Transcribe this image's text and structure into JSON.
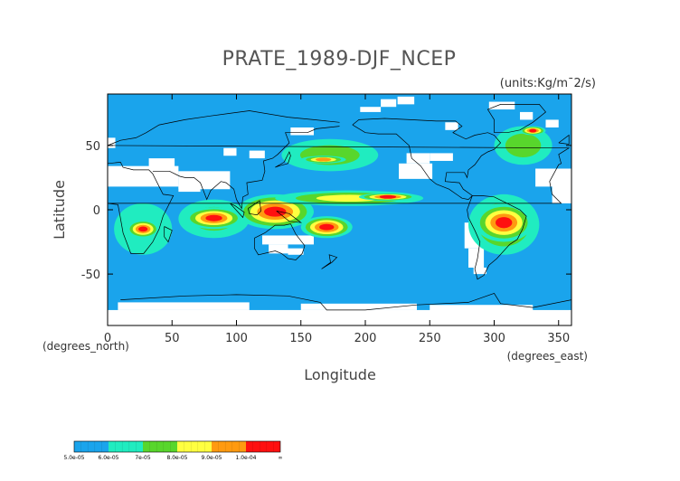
{
  "chart_data": {
    "type": "heatmap",
    "title": "PRATE_1989-DJF_NCEP",
    "units": "(units:Kg/m¯2/s)",
    "xlabel": "Longitude",
    "ylabel": "Latitude",
    "x_unit_label": "(degrees_east)",
    "y_unit_label": "(degrees_north)",
    "xlim": [
      0,
      360
    ],
    "ylim": [
      -90,
      90
    ],
    "x_ticks": [
      0,
      50,
      100,
      150,
      200,
      250,
      300,
      350
    ],
    "y_ticks": [
      50,
      0,
      -50
    ],
    "x_tick_labels": [
      "0",
      "50",
      "100",
      "150",
      "200",
      "250",
      "300",
      "350"
    ],
    "y_tick_labels": [
      "50",
      "0",
      "-50"
    ],
    "colorbar": {
      "labels": [
        "5.0e-05",
        "6.0e-05",
        "7e-05",
        "8.0e-05",
        "9.0e-05",
        "1.0e-04",
        "∞"
      ],
      "colors": [
        "#1aa4ec",
        "#20ecc0",
        "#58d62c",
        "#ffff40",
        "#ff9a10",
        "#ff1010"
      ]
    },
    "colors": {
      "background": "#1aa4ec",
      "missing": "#ffffff",
      "coast": "#000000",
      "c1": "#1aa4ec",
      "c2": "#20ecc0",
      "c3": "#58d62c",
      "c4": "#ffff40",
      "c5": "#ff9a10",
      "c6": "#ff1010"
    },
    "regions": [
      {
        "lon_min": 5,
        "lon_max": 50,
        "lat_min": -35,
        "lat_max": 5,
        "value": 6.5e-05
      },
      {
        "lon_min": 15,
        "lon_max": 40,
        "lat_min": -22,
        "lat_max": -8,
        "value": 0.000105
      },
      {
        "lon_min": 55,
        "lon_max": 110,
        "lat_min": -22,
        "lat_max": 8,
        "value": 7.5e-05
      },
      {
        "lon_min": 60,
        "lon_max": 105,
        "lat_min": -15,
        "lat_max": 2,
        "value": 0.000105
      },
      {
        "lon_min": 100,
        "lon_max": 160,
        "lat_min": -15,
        "lat_max": 12,
        "value": 0.000105
      },
      {
        "lon_min": 150,
        "lon_max": 190,
        "lat_min": -22,
        "lat_max": -5,
        "value": 0.000105
      },
      {
        "lon_min": 130,
        "lon_max": 245,
        "lat_min": 3,
        "lat_max": 15,
        "value": 8.5e-05
      },
      {
        "lon_min": 195,
        "lon_max": 240,
        "lat_min": 7,
        "lat_max": 13,
        "value": 0.000105
      },
      {
        "lon_min": 135,
        "lon_max": 210,
        "lat_min": 30,
        "lat_max": 55,
        "value": 7e-05
      },
      {
        "lon_min": 150,
        "lon_max": 185,
        "lat_min": 36,
        "lat_max": 42,
        "value": 9.5e-05
      },
      {
        "lon_min": 280,
        "lon_max": 335,
        "lat_min": -35,
        "lat_max": 12,
        "value": 8e-05
      },
      {
        "lon_min": 285,
        "lon_max": 330,
        "lat_min": -25,
        "lat_max": 5,
        "value": 0.000105
      },
      {
        "lon_min": 300,
        "lon_max": 345,
        "lat_min": 35,
        "lat_max": 65,
        "value": 7.5e-05
      },
      {
        "lon_min": 320,
        "lon_max": 340,
        "lat_min": 58,
        "lat_max": 65,
        "value": 0.000105
      }
    ]
  }
}
